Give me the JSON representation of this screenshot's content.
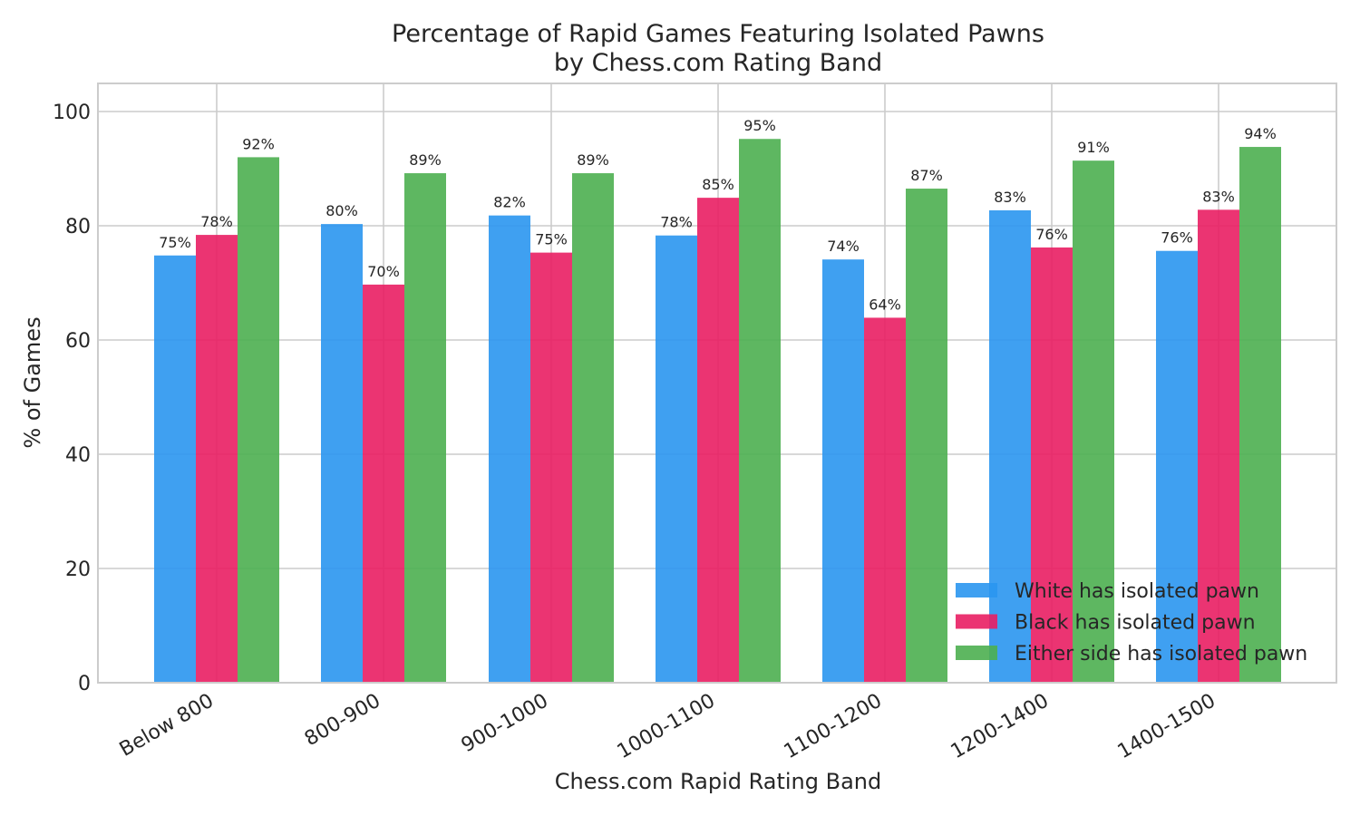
{
  "chart_data": {
    "type": "bar",
    "title": [
      "Percentage of Rapid Games Featuring Isolated Pawns",
      "by Chess.com Rating Band"
    ],
    "xlabel": "Chess.com Rapid Rating Band",
    "ylabel": "% of Games",
    "ylim": [
      0,
      105
    ],
    "yticks": [
      0,
      20,
      40,
      60,
      80,
      100
    ],
    "grid": true,
    "legend_position": "bottom-right",
    "categories": [
      "Below 800",
      "800-900",
      "900-1000",
      "1000-1100",
      "1100-1200",
      "1200-1400",
      "1400-1500"
    ],
    "series": [
      {
        "name": "White has isolated pawn",
        "color": "#2a96f0",
        "values": [
          74.8,
          80.3,
          81.8,
          78.3,
          74.1,
          82.7,
          75.6
        ],
        "labels": [
          "75%",
          "80%",
          "82%",
          "78%",
          "74%",
          "83%",
          "76%"
        ]
      },
      {
        "name": "Black has isolated pawn",
        "color": "#e91e63",
        "values": [
          78.4,
          69.7,
          75.3,
          84.9,
          63.9,
          76.2,
          82.8
        ],
        "labels": [
          "78%",
          "70%",
          "75%",
          "85%",
          "64%",
          "76%",
          "83%"
        ]
      },
      {
        "name": "Either side has isolated pawn",
        "color": "#4caf50",
        "values": [
          92.0,
          89.2,
          89.2,
          95.2,
          86.5,
          91.4,
          93.8
        ],
        "labels": [
          "92%",
          "89%",
          "89%",
          "95%",
          "87%",
          "91%",
          "94%"
        ]
      }
    ]
  }
}
